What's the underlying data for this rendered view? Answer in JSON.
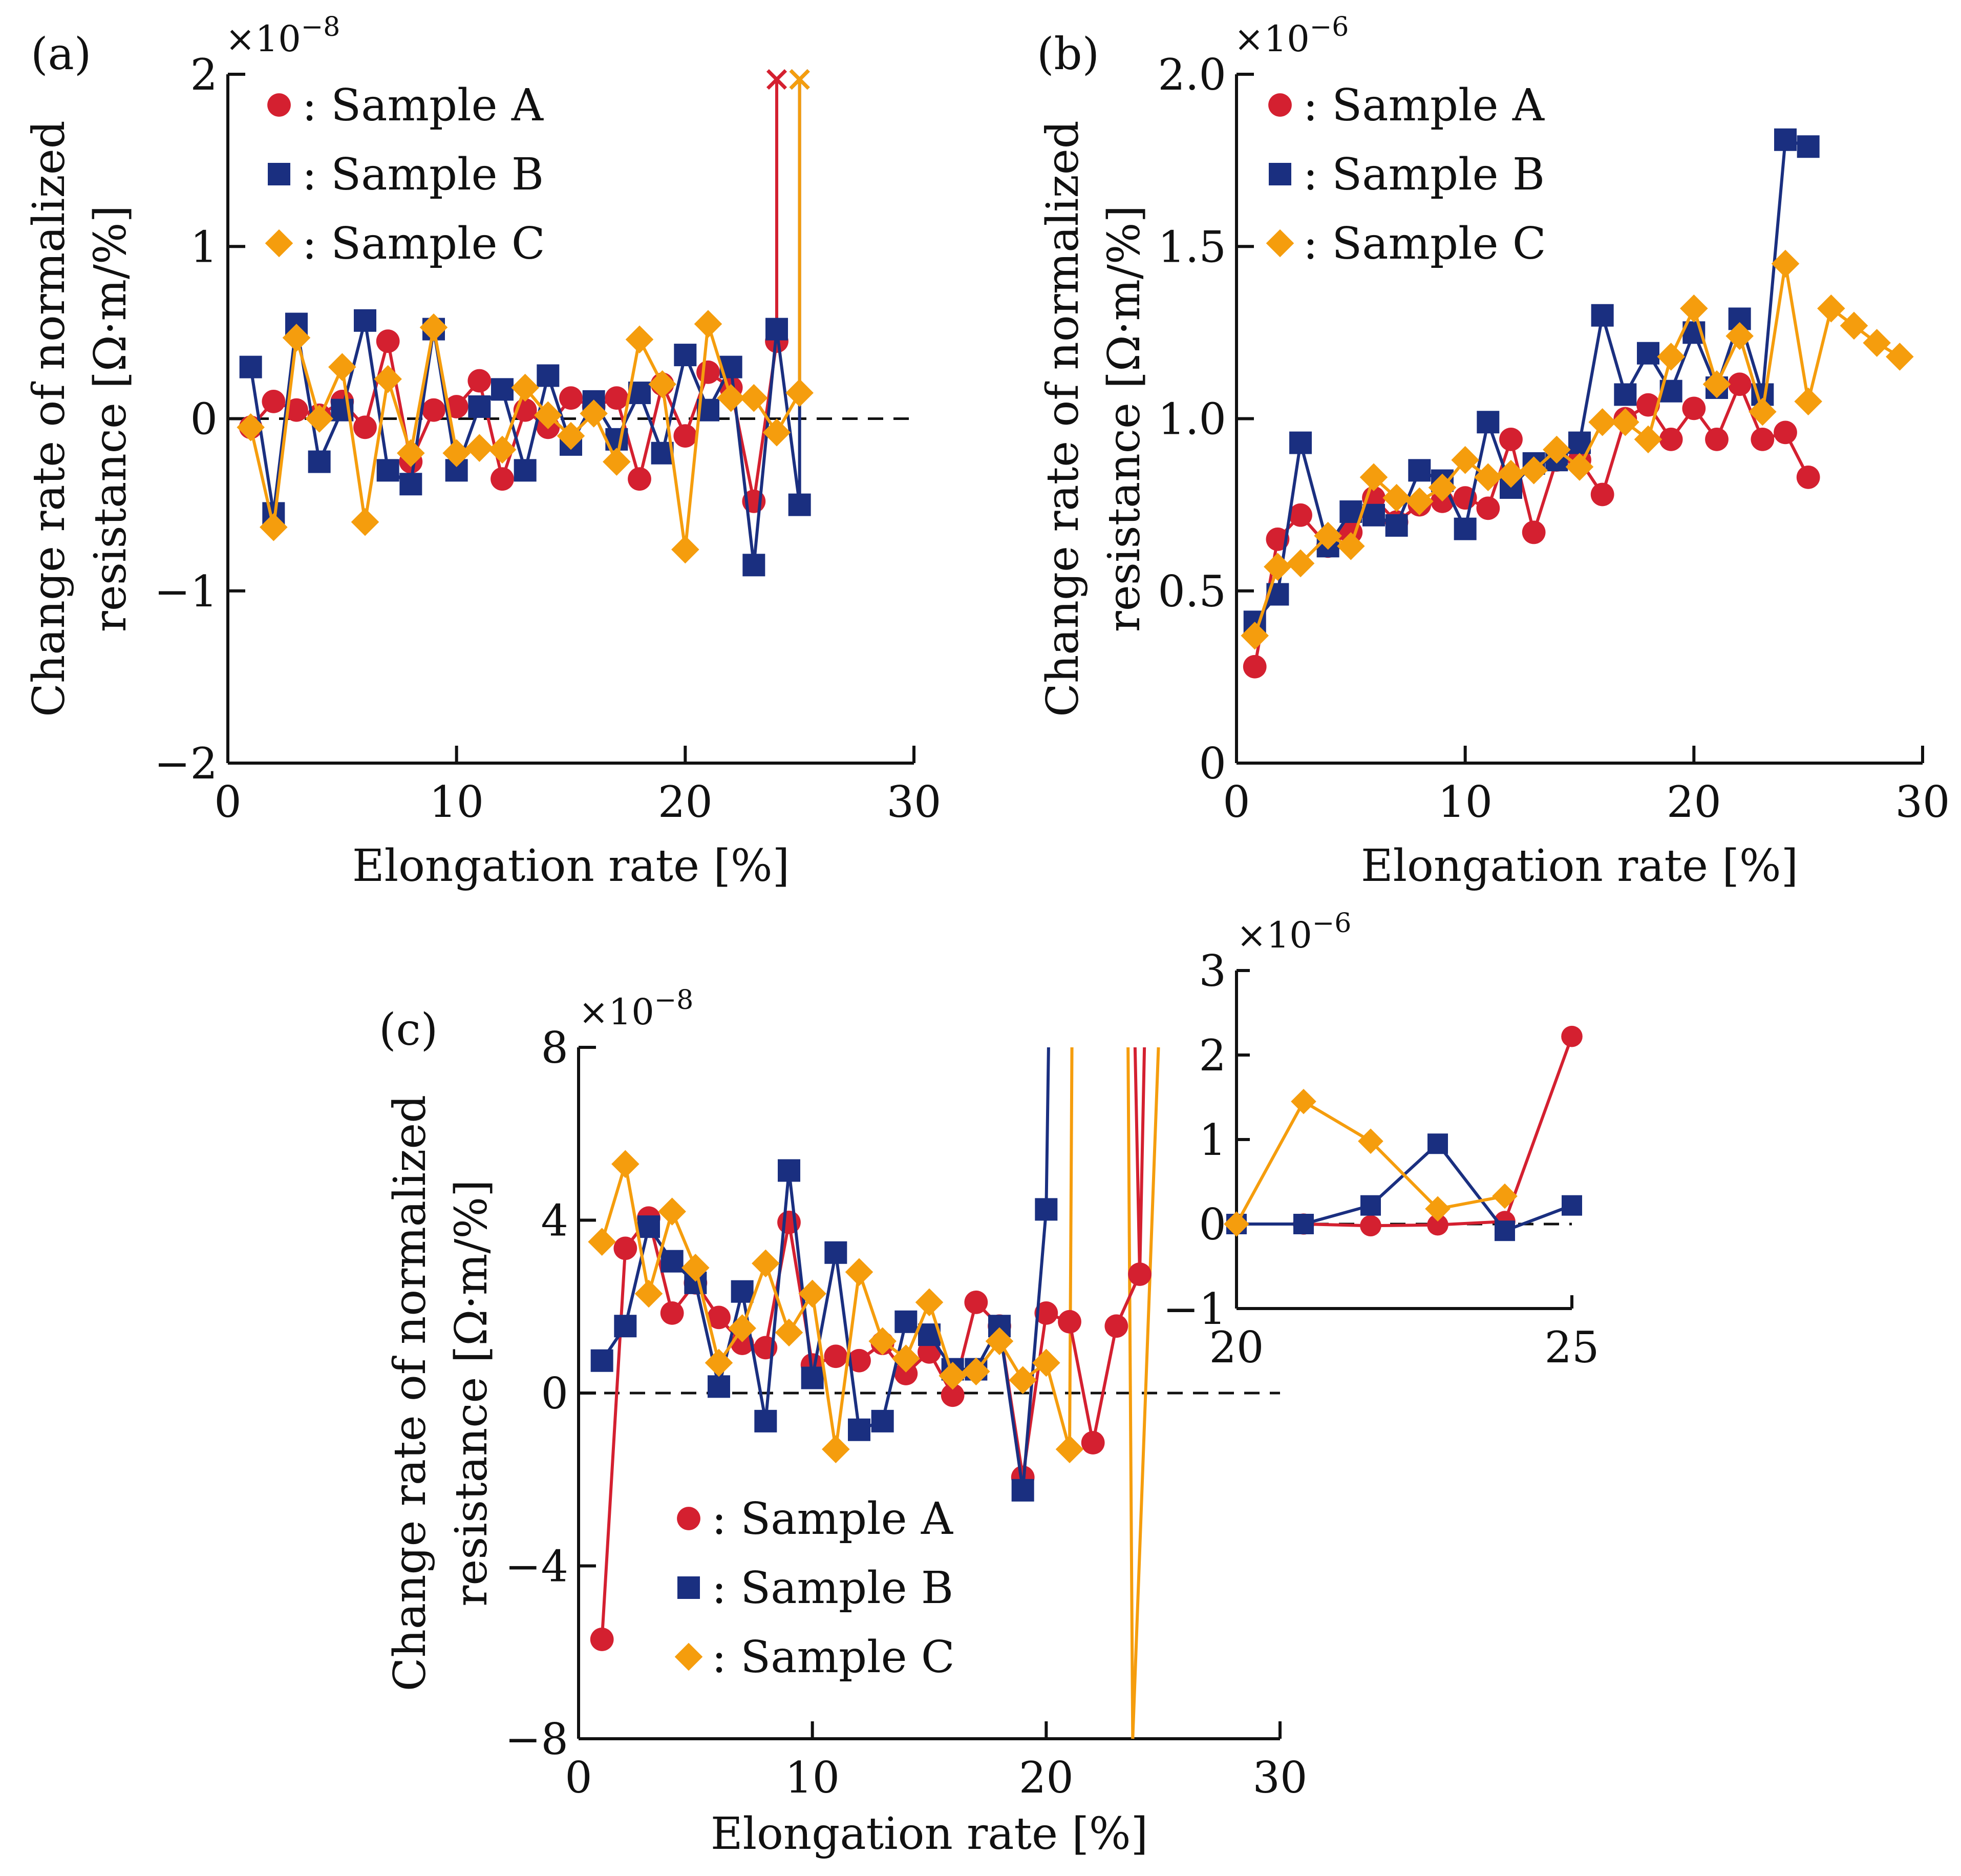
{
  "colors": {
    "A": "#d42030",
    "B": "#1a2f80",
    "C": "#f59d0d"
  },
  "chart_data": [
    {
      "id": "a",
      "panel_label": "(a)",
      "type": "line",
      "multiplier": "×10",
      "exponent": "−8",
      "ylabel_line1": "Change rate of normalized",
      "ylabel_line2": "resistance [Ω·m/%]",
      "xlabel": "Elongation rate [%]",
      "xlim": [
        0,
        30
      ],
      "ylim": [
        -2,
        2
      ],
      "xticks": [
        0,
        10,
        20,
        30
      ],
      "xticklabels": [
        "0",
        "10",
        "20",
        "30"
      ],
      "yticks": [
        -2,
        -1,
        0,
        1,
        2
      ],
      "yticklabels": [
        "−2",
        "−1",
        "0",
        "1",
        "2"
      ],
      "zero_line": true,
      "legend": [
        "Sample A",
        "Sample B",
        "Sample C"
      ],
      "legend_position": "top-left",
      "series": [
        {
          "name": "Sample A",
          "key": "A",
          "marker": "circle",
          "x": [
            1,
            2,
            3,
            4,
            5,
            6,
            7,
            8,
            9,
            10,
            11,
            12,
            13,
            14,
            15,
            16,
            17,
            18,
            19,
            20,
            21,
            22,
            23,
            24,
            24
          ],
          "y": [
            -0.05,
            0.1,
            0.05,
            0.02,
            0.1,
            -0.05,
            0.45,
            -0.25,
            0.05,
            0.07,
            0.22,
            -0.35,
            0.05,
            -0.05,
            0.12,
            0.07,
            0.12,
            -0.35,
            0.2,
            -0.1,
            0.27,
            0.18,
            -0.48,
            0.45,
            1.97
          ],
          "end_marker": "x"
        },
        {
          "name": "Sample B",
          "key": "B",
          "marker": "square",
          "x": [
            1,
            2,
            3,
            4,
            5,
            6,
            7,
            8,
            9,
            10,
            11,
            12,
            13,
            14,
            15,
            16,
            17,
            18,
            19,
            20,
            21,
            22,
            23,
            24,
            25,
            25
          ],
          "y": [
            0.3,
            -0.55,
            0.55,
            -0.25,
            0.05,
            0.57,
            -0.3,
            -0.38,
            0.52,
            -0.3,
            0.07,
            0.17,
            -0.3,
            0.25,
            -0.15,
            0.1,
            -0.12,
            0.15,
            -0.2,
            0.37,
            0.05,
            0.3,
            -0.85,
            0.52,
            -0.5,
            1.97
          ],
          "end_marker": "x"
        },
        {
          "name": "Sample C",
          "key": "C",
          "marker": "diamond",
          "x": [
            1,
            2,
            3,
            4,
            5,
            6,
            7,
            8,
            9,
            10,
            11,
            12,
            13,
            14,
            15,
            16,
            17,
            18,
            19,
            20,
            21,
            22,
            23,
            24,
            25,
            25
          ],
          "y": [
            -0.05,
            -0.63,
            0.47,
            0.0,
            0.3,
            -0.6,
            0.23,
            -0.2,
            0.53,
            -0.2,
            -0.17,
            -0.18,
            0.18,
            0.02,
            -0.1,
            0.03,
            -0.25,
            0.46,
            0.2,
            -0.76,
            0.55,
            0.12,
            0.12,
            -0.08,
            0.15,
            1.97
          ],
          "end_marker": "x"
        }
      ]
    },
    {
      "id": "b",
      "panel_label": "(b)",
      "type": "line",
      "multiplier": "×10",
      "exponent": "−6",
      "ylabel_line1": "Change rate of normalized",
      "ylabel_line2": "resistance [Ω·m/%]",
      "xlabel": "Elongation rate [%]",
      "xlim": [
        0,
        30
      ],
      "ylim": [
        0,
        2
      ],
      "xticks": [
        0,
        10,
        20,
        30
      ],
      "xticklabels": [
        "0",
        "10",
        "20",
        "30"
      ],
      "yticks": [
        0,
        0.5,
        1,
        1.5,
        2
      ],
      "yticklabels": [
        "0",
        "0.5",
        "1.0",
        "1.5",
        "2.0"
      ],
      "zero_line": false,
      "legend": [
        "Sample A",
        "Sample B",
        "Sample C"
      ],
      "legend_position": "top-left",
      "series": [
        {
          "name": "Sample A",
          "key": "A",
          "marker": "circle",
          "x": [
            0.8,
            1.8,
            2.8,
            4,
            5,
            6,
            7,
            8,
            9,
            10,
            11,
            12,
            13,
            14,
            15,
            16,
            17,
            18,
            19,
            20,
            21,
            22,
            23,
            24,
            25
          ],
          "y": [
            0.28,
            0.65,
            0.72,
            0.63,
            0.67,
            0.77,
            0.7,
            0.75,
            0.76,
            0.77,
            0.74,
            0.94,
            0.67,
            0.88,
            0.88,
            0.78,
            1.0,
            1.04,
            0.94,
            1.03,
            0.94,
            1.1,
            0.94,
            0.96,
            0.83
          ]
        },
        {
          "name": "Sample B",
          "key": "B",
          "marker": "square",
          "x": [
            0.8,
            1.8,
            2.8,
            4,
            5,
            6,
            7,
            8,
            9,
            10,
            11,
            12,
            13,
            14,
            15,
            16,
            17,
            18,
            19,
            20,
            21,
            22,
            23,
            24,
            25
          ],
          "y": [
            0.41,
            0.49,
            0.93,
            0.63,
            0.73,
            0.72,
            0.69,
            0.85,
            0.82,
            0.68,
            0.99,
            0.8,
            0.87,
            0.88,
            0.93,
            1.3,
            1.07,
            1.19,
            1.08,
            1.25,
            1.09,
            1.29,
            1.07,
            1.81,
            1.79
          ]
        },
        {
          "name": "Sample C",
          "key": "C",
          "marker": "diamond",
          "x": [
            0.8,
            1.8,
            2.8,
            4,
            5,
            6,
            7,
            8,
            9,
            10,
            11,
            12,
            13,
            14,
            15,
            16,
            17,
            18,
            19,
            20,
            21,
            22,
            23,
            24,
            25,
            26,
            27,
            28,
            29
          ],
          "y": [
            0.37,
            0.57,
            0.58,
            0.66,
            0.63,
            0.83,
            0.77,
            0.76,
            0.8,
            0.88,
            0.83,
            0.84,
            0.85,
            0.91,
            0.86,
            0.99,
            0.99,
            0.94,
            1.18,
            1.32,
            1.1,
            1.24,
            1.02,
            1.45,
            1.05,
            1.32,
            1.27,
            1.22,
            1.18
          ]
        }
      ]
    },
    {
      "id": "c",
      "panel_label": "(c)",
      "type": "line",
      "multiplier": "×10",
      "exponent": "−8",
      "ylabel_line1": "Change rate of normalized",
      "ylabel_line2": "resistance [Ω·m/%]",
      "xlabel": "Elongation rate [%]",
      "xlim": [
        0,
        30
      ],
      "ylim": [
        -8,
        8
      ],
      "xticks": [
        0,
        10,
        20,
        30
      ],
      "xticklabels": [
        "0",
        "10",
        "20",
        "30"
      ],
      "yticks": [
        -8,
        -4,
        0,
        4,
        8
      ],
      "yticklabels": [
        "−8",
        "−4",
        "0",
        "4",
        "8"
      ],
      "zero_line": true,
      "legend": [
        "Sample A",
        "Sample B",
        "Sample C"
      ],
      "legend_position": "lower-left",
      "series": [
        {
          "name": "Sample A",
          "key": "A",
          "marker": "circle",
          "x": [
            1,
            2,
            3,
            4,
            5,
            6,
            7,
            8,
            9,
            10,
            11,
            12,
            13,
            14,
            15,
            16,
            17,
            18,
            19,
            20,
            21,
            22,
            23,
            24
          ],
          "y": [
            -5.7,
            3.35,
            4.05,
            1.85,
            2.55,
            1.75,
            1.15,
            1.05,
            3.95,
            0.65,
            0.85,
            0.75,
            1.15,
            0.45,
            0.95,
            -0.05,
            2.1,
            1.55,
            -1.95,
            1.85,
            1.65,
            -1.15,
            1.55,
            2.75
          ]
        },
        {
          "name": "Sample B",
          "key": "B",
          "marker": "square",
          "x": [
            1,
            2,
            3,
            4,
            5,
            6,
            7,
            8,
            9,
            10,
            11,
            12,
            13,
            14,
            15,
            16,
            17,
            18,
            19,
            20
          ],
          "y": [
            0.75,
            1.55,
            3.85,
            3.05,
            2.55,
            0.15,
            2.35,
            -0.65,
            5.15,
            0.35,
            3.25,
            -0.85,
            -0.65,
            1.65,
            1.35,
            0.55,
            0.55,
            1.55,
            -2.25,
            4.25
          ]
        },
        {
          "name": "Sample C",
          "key": "C",
          "marker": "diamond",
          "x": [
            1,
            2,
            3,
            4,
            5,
            6,
            7,
            8,
            9,
            10,
            11,
            12,
            13,
            14,
            15,
            16,
            17,
            18,
            19,
            20,
            21
          ],
          "y": [
            3.5,
            5.3,
            2.3,
            4.2,
            2.9,
            0.7,
            1.5,
            3.0,
            1.4,
            2.3,
            -1.3,
            2.8,
            1.2,
            0.8,
            2.1,
            0.4,
            0.5,
            1.2,
            0.3,
            0.7,
            -1.3
          ]
        }
      ],
      "overflow_lines": [
        {
          "key": "B",
          "x1": 20,
          "y1": 4.25,
          "x2": 20.1,
          "y2": 8
        },
        {
          "key": "C",
          "x1": 21,
          "y1": -1.3,
          "x2": 21.1,
          "y2": 8
        },
        {
          "key": "C",
          "x1": 23.5,
          "y1": 8,
          "x2": 23.7,
          "y2": -8
        },
        {
          "key": "C",
          "x1": 23.7,
          "y1": -8,
          "x2": 24.8,
          "y2": 8
        },
        {
          "key": "A",
          "x1": 24,
          "y1": 2.75,
          "x2": 24.2,
          "y2": 8
        },
        {
          "key": "A",
          "x1": 23.8,
          "y1": 8,
          "x2": 24.0,
          "y2": 2.75
        }
      ]
    },
    {
      "id": "c-inset",
      "panel_label": "",
      "type": "line",
      "multiplier": "×10",
      "exponent": "−6",
      "xlim": [
        20,
        25
      ],
      "ylim": [
        -1,
        3
      ],
      "xticks": [
        20,
        25
      ],
      "xticklabels": [
        "20",
        "25"
      ],
      "yticks": [
        -1,
        0,
        1,
        2,
        3
      ],
      "yticklabels": [
        "−1",
        "0",
        "1",
        "2",
        "3"
      ],
      "zero_line": true,
      "series": [
        {
          "name": "Sample A",
          "key": "A",
          "marker": "circle",
          "x": [
            20,
            21,
            22,
            23,
            24,
            25
          ],
          "y": [
            0.0,
            0.0,
            -0.02,
            -0.01,
            0.03,
            2.22
          ]
        },
        {
          "name": "Sample B",
          "key": "B",
          "marker": "square",
          "x": [
            20,
            21,
            22,
            23,
            24,
            25
          ],
          "y": [
            0.0,
            0.0,
            0.22,
            0.95,
            -0.08,
            0.22
          ]
        },
        {
          "name": "Sample C",
          "key": "C",
          "marker": "diamond",
          "x": [
            20,
            21,
            22,
            23,
            24
          ],
          "y": [
            0.0,
            1.45,
            0.98,
            0.18,
            0.33
          ]
        }
      ]
    }
  ]
}
